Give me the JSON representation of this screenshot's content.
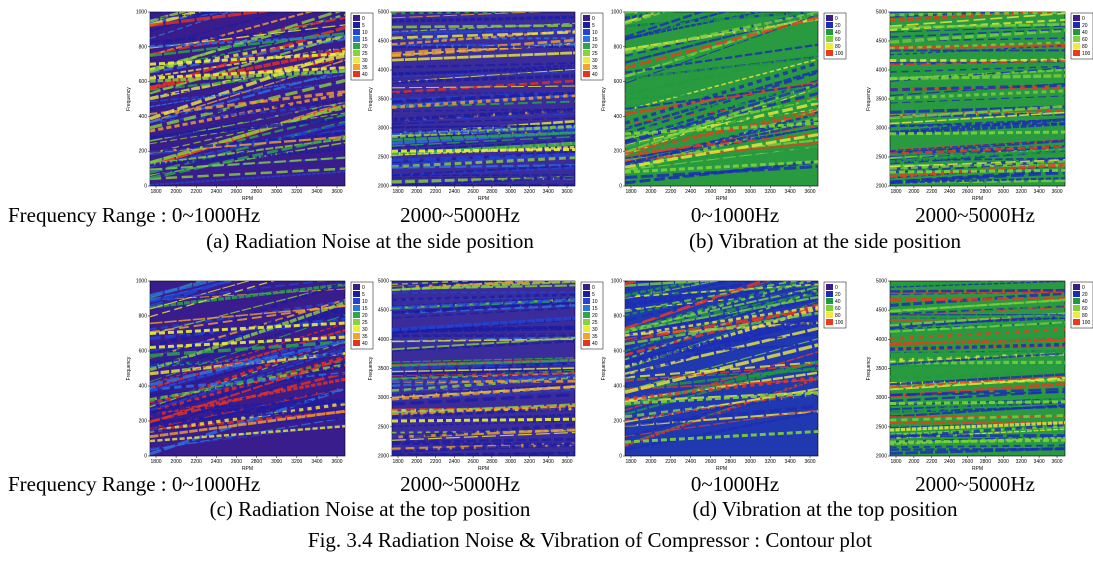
{
  "plots": [
    {
      "ylabel": "Frequency",
      "xlabel": "RPM",
      "yticks": [
        "0",
        "200",
        "400",
        "600",
        "800",
        "1000"
      ],
      "xticks": [
        "1800",
        "2000",
        "2200",
        "2400",
        "2600",
        "2800",
        "3000",
        "3200",
        "3400",
        "3600"
      ],
      "legend": [
        "0",
        "5",
        "10",
        "15",
        "20",
        "25",
        "30",
        "35",
        "40"
      ]
    },
    {
      "ylabel": "Frequency",
      "xlabel": "RPM",
      "yticks": [
        "2000",
        "2500",
        "3000",
        "3500",
        "4000",
        "4500",
        "5000"
      ],
      "xticks": [
        "1800",
        "2000",
        "2200",
        "2400",
        "2600",
        "2800",
        "3000",
        "3200",
        "3400",
        "3600"
      ],
      "legend": [
        "0",
        "5",
        "10",
        "15",
        "20",
        "25",
        "30",
        "35",
        "40"
      ]
    },
    {
      "ylabel": "Frequency",
      "xlabel": "RPM",
      "yticks": [
        "0",
        "200",
        "400",
        "600",
        "800",
        "1000"
      ],
      "xticks": [
        "1800",
        "2000",
        "2200",
        "2400",
        "2600",
        "2800",
        "3000",
        "3200",
        "3400",
        "3600"
      ],
      "legend": [
        "0",
        "20",
        "40",
        "60",
        "80",
        "100"
      ]
    },
    {
      "ylabel": "Frequency",
      "xlabel": "RPM",
      "yticks": [
        "2000",
        "2500",
        "3000",
        "3500",
        "4000",
        "4500",
        "5000"
      ],
      "xticks": [
        "1800",
        "2000",
        "2200",
        "2400",
        "2600",
        "2800",
        "3000",
        "3200",
        "3400",
        "3600"
      ],
      "legend": [
        "0",
        "20",
        "40",
        "60",
        "80",
        "100"
      ]
    },
    {
      "ylabel": "Frequency",
      "xlabel": "RPM",
      "yticks": [
        "0",
        "200",
        "400",
        "600",
        "800",
        "1000"
      ],
      "xticks": [
        "1800",
        "2000",
        "2200",
        "2400",
        "2600",
        "2800",
        "3000",
        "3200",
        "3400",
        "3600"
      ],
      "legend": [
        "0",
        "5",
        "10",
        "15",
        "20",
        "25",
        "30",
        "35",
        "40"
      ]
    },
    {
      "ylabel": "Frequency",
      "xlabel": "RPM",
      "yticks": [
        "2000",
        "2500",
        "3000",
        "3500",
        "4000",
        "4500",
        "5000"
      ],
      "xticks": [
        "1800",
        "2000",
        "2200",
        "2400",
        "2600",
        "2800",
        "3000",
        "3200",
        "3400",
        "3600"
      ],
      "legend": [
        "0",
        "5",
        "10",
        "15",
        "20",
        "25",
        "30",
        "35",
        "40"
      ]
    },
    {
      "ylabel": "Frequency",
      "xlabel": "RPM",
      "yticks": [
        "0",
        "200",
        "400",
        "600",
        "800",
        "1000"
      ],
      "xticks": [
        "1800",
        "2000",
        "2200",
        "2400",
        "2600",
        "2800",
        "3000",
        "3200",
        "3400",
        "3600"
      ],
      "legend": [
        "0",
        "20",
        "40",
        "60",
        "80",
        "100"
      ]
    },
    {
      "ylabel": "Frequency",
      "xlabel": "RPM",
      "yticks": [
        "2000",
        "2500",
        "3000",
        "3500",
        "4000",
        "4500",
        "5000"
      ],
      "xticks": [
        "1800",
        "2000",
        "2200",
        "2400",
        "2600",
        "2800",
        "3000",
        "3200",
        "3400",
        "3600"
      ],
      "legend": [
        "0",
        "20",
        "40",
        "60",
        "80",
        "100"
      ]
    }
  ],
  "rows": [
    {
      "ranges": [
        "Frequency Range : 0~1000Hz",
        "2000~5000Hz",
        "0~1000Hz",
        "2000~5000Hz"
      ],
      "captions": [
        "(a) Radiation Noise at the side position",
        "(b) Vibration at the side position"
      ]
    },
    {
      "ranges": [
        "Frequency Range : 0~1000Hz",
        "2000~5000Hz",
        "0~1000Hz",
        "2000~5000Hz"
      ],
      "captions": [
        "(c) Radiation Noise at the top position",
        "(d) Vibration at the top position"
      ]
    }
  ],
  "figure_caption": "Fig. 3.4 Radiation Noise & Vibration of Compressor : Contour plot"
}
